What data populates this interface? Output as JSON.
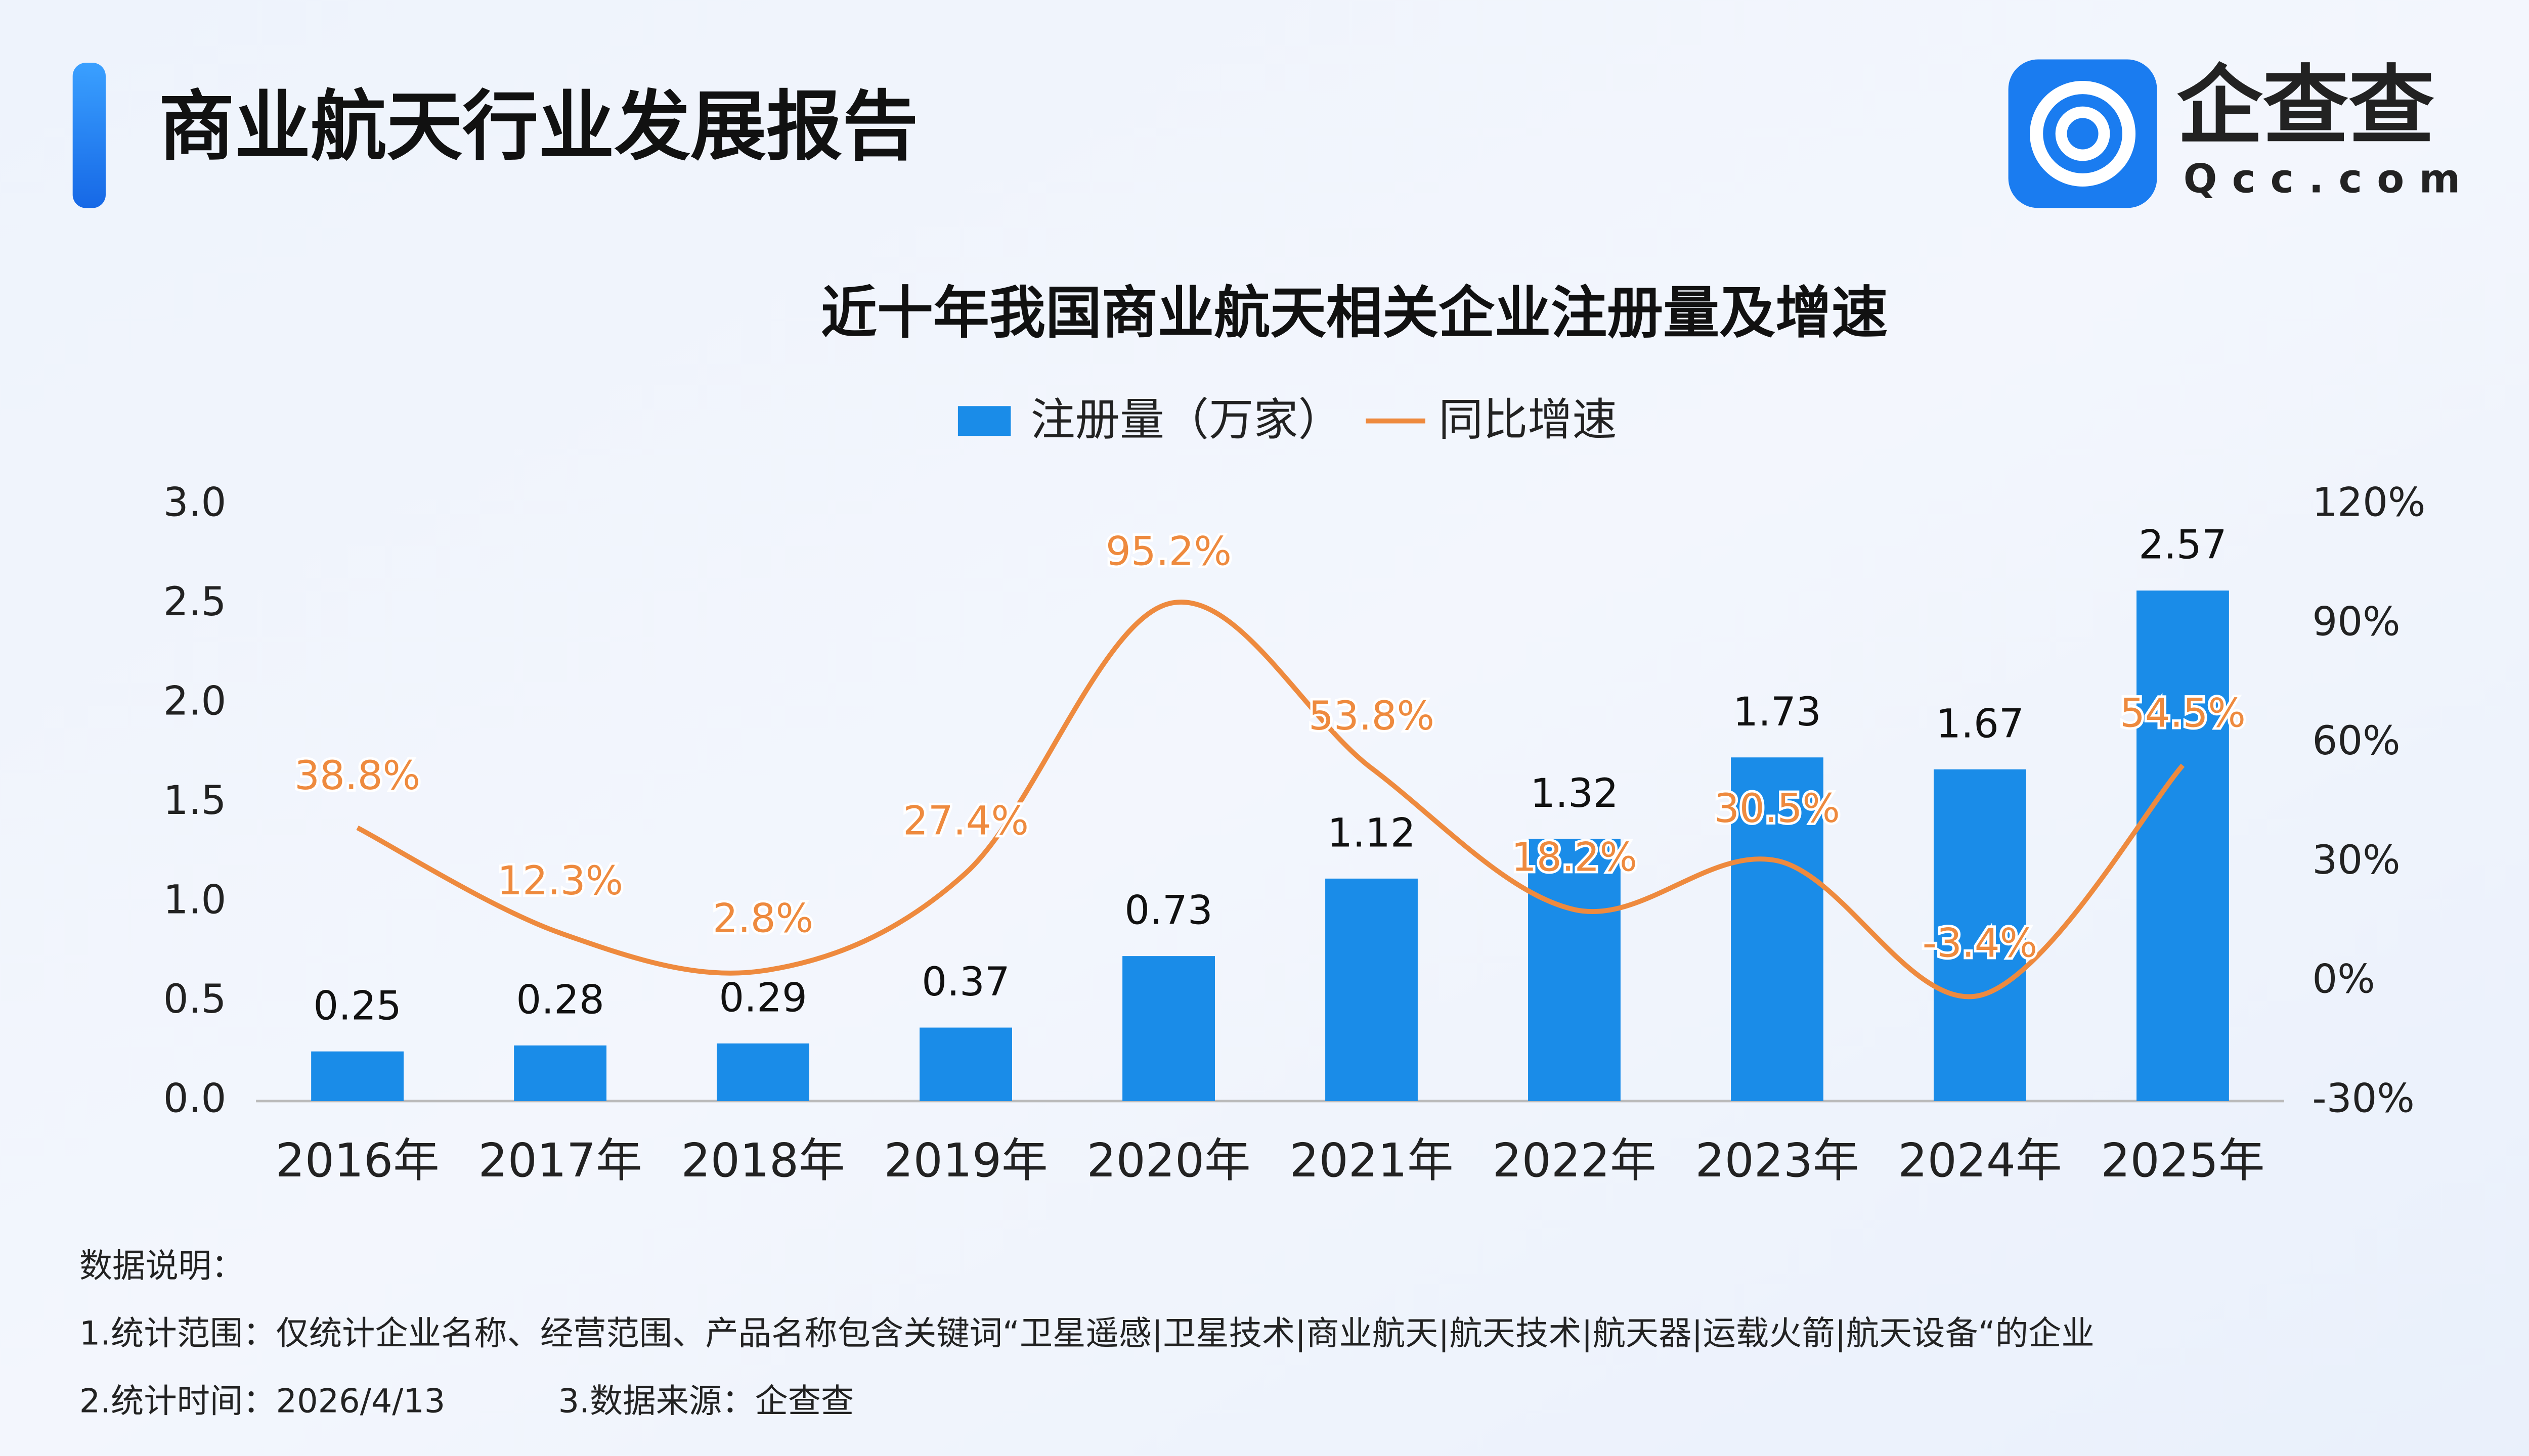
{
  "header": {
    "title": "商业航天行业发展报告",
    "logo_name": "企查查",
    "logo_domain": "Qcc.com"
  },
  "notes": {
    "title": "数据说明：",
    "lines": [
      "1.统计范围：仅统计企业名称、经营范围、产品名称包含关键词“卫星遥感|卫星技术|商业航天|航天技术|航天器|运载火箭|航天设备“的企业",
      "2.统计时间：2026/4/13",
      "3.数据来源：企查查"
    ]
  },
  "chart_data": {
    "type": "combo",
    "title": "近十年我国商业航天相关企业注册量及增速",
    "categories": [
      "2016年",
      "2017年",
      "2018年",
      "2019年",
      "2020年",
      "2021年",
      "2022年",
      "2023年",
      "2024年",
      "2025年"
    ],
    "series": [
      {
        "name": "注册量（万家）",
        "type": "bar",
        "color": "#1a8ce8",
        "values": [
          0.25,
          0.28,
          0.29,
          0.37,
          0.73,
          1.12,
          1.32,
          1.73,
          1.67,
          2.57
        ]
      },
      {
        "name": "同比增速",
        "type": "line",
        "axis": "y2",
        "color": "#ee8a3e",
        "values": [
          38.8,
          12.3,
          2.8,
          27.4,
          95.2,
          53.8,
          18.2,
          30.5,
          -3.4,
          54.5
        ],
        "value_labels": [
          "38.8%",
          "12.3%",
          "2.8%",
          "27.4%",
          "95.2%",
          "53.8%",
          "18.2%",
          "30.5%",
          "-3.4%",
          "54.5%"
        ]
      }
    ],
    "ylim": [
      0,
      3
    ],
    "yticks": [
      {
        "value": 0,
        "label": "0.0"
      },
      0.5,
      {
        "value": 1,
        "label": "1.0"
      },
      1.5,
      {
        "value": 2,
        "label": "2.0"
      },
      2.5,
      {
        "value": 3,
        "label": "3.0"
      }
    ],
    "y2lim": [
      -30,
      120
    ],
    "y2ticks": [
      {
        "value": -30,
        "label": "-30%"
      },
      {
        "value": 0,
        "label": "0%"
      },
      {
        "value": 30,
        "label": "30%"
      },
      {
        "value": 60,
        "label": "60%"
      },
      {
        "value": 90,
        "label": "90%"
      },
      {
        "value": 120,
        "label": "120%"
      }
    ],
    "grid": false
  }
}
